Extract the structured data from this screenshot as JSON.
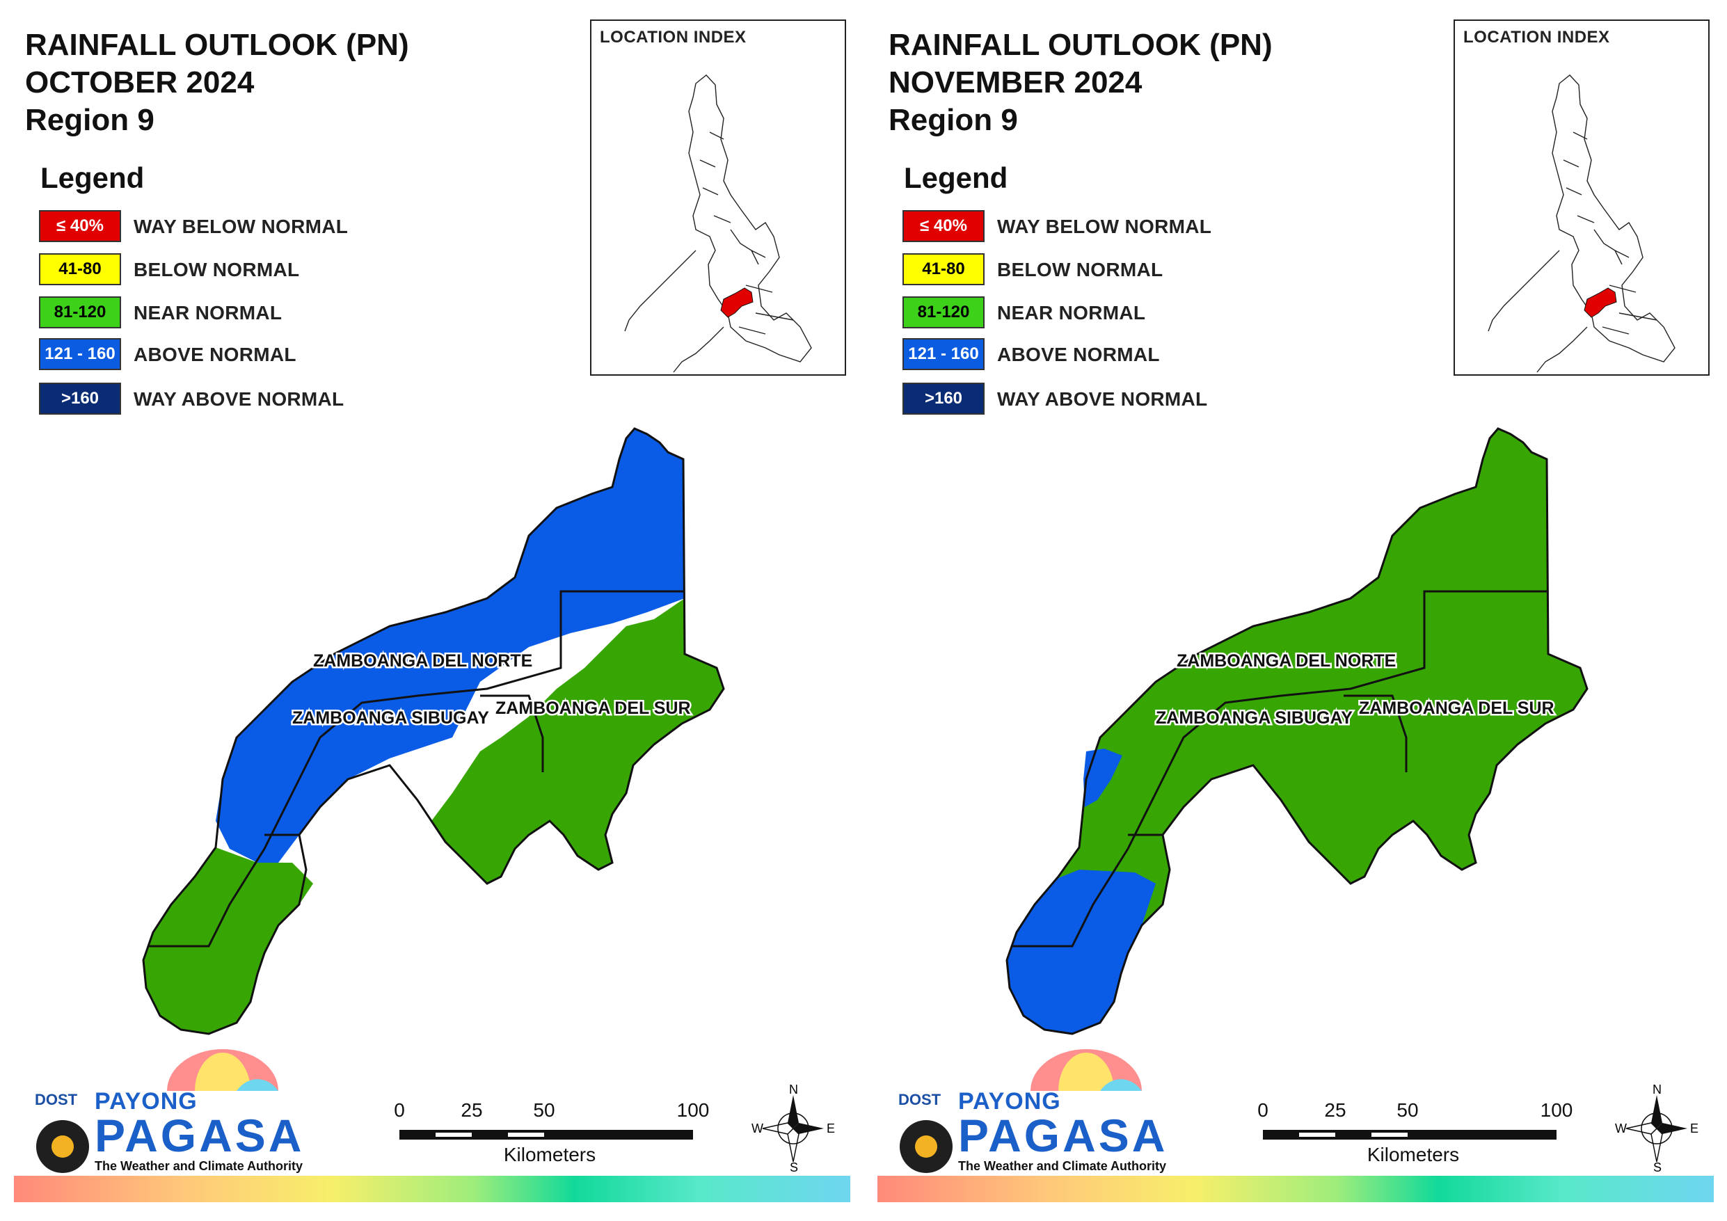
{
  "panels": [
    {
      "title_line1": "RAINFALL OUTLOOK (PN)",
      "title_line2": "OCTOBER 2024",
      "title_line3": "Region 9",
      "legend_title": "Legend",
      "legend": [
        {
          "swatch": "≤ 40%",
          "label": "WAY BELOW NORMAL",
          "color": "#e00000",
          "text_color": "#ffffff"
        },
        {
          "swatch": "41-80",
          "label": "BELOW NORMAL",
          "color": "#ffff00",
          "text_color": "#000000"
        },
        {
          "swatch": "81-120",
          "label": "NEAR NORMAL",
          "color": "#3ed119",
          "text_color": "#000000"
        },
        {
          "swatch": "121 - 160",
          "label": "ABOVE NORMAL",
          "color": "#0b5ce0",
          "text_color": "#ffffff"
        },
        {
          "swatch": ">160",
          "label": "WAY ABOVE NORMAL",
          "color": "#0a2c74",
          "text_color": "#ffffff"
        }
      ],
      "location_index_title": "LOCATION INDEX",
      "provinces": {
        "norte": {
          "name": "ZAMBOANGA DEL NORTE",
          "category": "mixed: ABOVE NORMAL / NEAR NORMAL"
        },
        "sibugay": {
          "name": "ZAMBOANGA SIBUGAY",
          "category": "mixed: ABOVE NORMAL / NEAR NORMAL"
        },
        "sur": {
          "name": "ZAMBOANGA DEL SUR",
          "category": "NEAR NORMAL"
        }
      },
      "scale": {
        "ticks": [
          "0",
          "25",
          "50",
          "100"
        ],
        "unit": "Kilometers"
      },
      "compass": {
        "n": "N",
        "s": "S",
        "e": "E",
        "w": "W"
      },
      "logo": {
        "dost": "DOST",
        "payong": "PAYONG",
        "pagasa": "PAGASA",
        "tagline": "The Weather and Climate Authority"
      }
    },
    {
      "title_line1": "RAINFALL OUTLOOK (PN)",
      "title_line2": "NOVEMBER 2024",
      "title_line3": "Region 9",
      "legend_title": "Legend",
      "legend": [
        {
          "swatch": "≤ 40%",
          "label": "WAY BELOW NORMAL",
          "color": "#e00000",
          "text_color": "#ffffff"
        },
        {
          "swatch": "41-80",
          "label": "BELOW NORMAL",
          "color": "#ffff00",
          "text_color": "#000000"
        },
        {
          "swatch": "81-120",
          "label": "NEAR NORMAL",
          "color": "#3ed119",
          "text_color": "#000000"
        },
        {
          "swatch": "121 - 160",
          "label": "ABOVE NORMAL",
          "color": "#0b5ce0",
          "text_color": "#ffffff"
        },
        {
          "swatch": ">160",
          "label": "WAY ABOVE NORMAL",
          "color": "#0a2c74",
          "text_color": "#ffffff"
        }
      ],
      "location_index_title": "LOCATION INDEX",
      "provinces": {
        "norte": {
          "name": "ZAMBOANGA DEL NORTE",
          "category": "NEAR NORMAL"
        },
        "sibugay": {
          "name": "ZAMBOANGA SIBUGAY",
          "category": "mostly NEAR NORMAL"
        },
        "sur": {
          "name": "ZAMBOANGA DEL SUR",
          "category": "NEAR NORMAL"
        }
      },
      "scale": {
        "ticks": [
          "0",
          "25",
          "50",
          "100"
        ],
        "unit": "Kilometers"
      },
      "compass": {
        "n": "N",
        "s": "S",
        "e": "E",
        "w": "W"
      },
      "logo": {
        "dost": "DOST",
        "payong": "PAYONG",
        "pagasa": "PAGASA",
        "tagline": "The Weather and Climate Authority"
      }
    }
  ],
  "colors": {
    "near_normal": "#37a603",
    "above_normal": "#0a5be6",
    "highlight": "#e00000"
  }
}
